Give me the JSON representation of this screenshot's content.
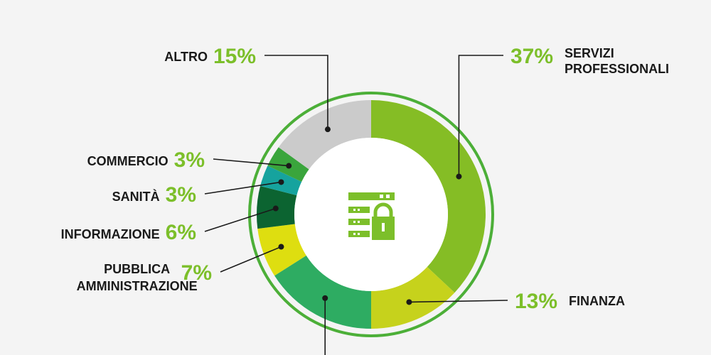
{
  "chart_data": {
    "type": "pie",
    "variant": "donut",
    "slices": [
      {
        "label": "SERVIZI PROFESSIONALI",
        "value": 37,
        "display": "37%",
        "color": "#85bd25"
      },
      {
        "label": "FINANZA",
        "value": 13,
        "display": "13%",
        "color": "#c6d21c"
      },
      {
        "label": "",
        "value": 16,
        "display": "",
        "color": "#2eac62"
      },
      {
        "label": "PUBBLICA AMMINISTRAZIONE",
        "value": 7,
        "display": "7%",
        "color": "#dede10"
      },
      {
        "label": "INFORMAZIONE",
        "value": 6,
        "display": "6%",
        "color": "#0c6431"
      },
      {
        "label": "SANITÀ",
        "value": 3,
        "display": "3%",
        "color": "#16a39e"
      },
      {
        "label": "COMMERCIO",
        "value": 3,
        "display": "3%",
        "color": "#3aa53c"
      },
      {
        "label": "ALTRO",
        "value": 15,
        "display": "15%",
        "color": "#cbcbcb"
      }
    ],
    "accent_color": "#7cbf2a",
    "outer_ring_color": "#4caf38",
    "center_icon": "server-lock-icon"
  }
}
